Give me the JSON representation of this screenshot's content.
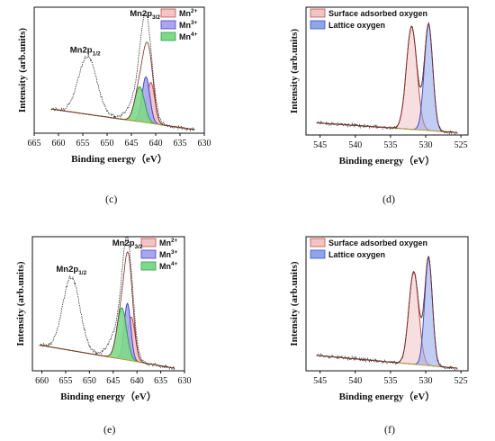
{
  "chart_data": [
    {
      "id": "c",
      "type": "line",
      "panel_label": "(c)",
      "xlabel": "Binding energy（eV）",
      "ylabel": "Intensity (arb.units)",
      "xlim": [
        665,
        630
      ],
      "xticks": [
        665,
        660,
        655,
        650,
        645,
        640,
        635,
        630
      ],
      "y_ticklabels": false,
      "legend_position": "top-right",
      "peak_labels": [
        {
          "base": "Mn2p",
          "sub": "1/2",
          "x": 654.5
        },
        {
          "base": "Mn2p",
          "sub": "3/2",
          "x": 642.2
        }
      ],
      "series": [
        {
          "name": "Mn",
          "sup": "2+",
          "color": "#c0504d",
          "fill": "#f2c4c4",
          "center": 641.0,
          "height": 0.34,
          "width": 0.8
        },
        {
          "name": "Mn",
          "sup": "3+",
          "color": "#4b3fc8",
          "fill": "#a9a6f0",
          "center": 642.0,
          "height": 0.38,
          "width": 0.8
        },
        {
          "name": "Mn",
          "sup": "4+",
          "color": "#2ea14a",
          "fill": "#7fd98a",
          "center": 643.3,
          "height": 0.29,
          "width": 1.0
        }
      ],
      "raw_peaks": [
        {
          "center": 654.0,
          "height": 0.48,
          "width": 1.9
        },
        {
          "center": 642.0,
          "height": 0.78,
          "width": 1.2
        },
        {
          "center": 643.6,
          "height": 0.18,
          "width": 1.9
        }
      ],
      "background": {
        "start": 661.5,
        "end": 632.0,
        "left_level": 0.2,
        "right_level": 0.03
      }
    },
    {
      "id": "d",
      "type": "line",
      "panel_label": "(d)",
      "xlabel": "Binding energy（eV）",
      "ylabel": "Intensity (arb.units)",
      "xlim": [
        547,
        524
      ],
      "xticks": [
        545,
        540,
        535,
        530,
        525
      ],
      "y_ticklabels": false,
      "legend_position": "top-left",
      "series": [
        {
          "name": "Surface adsorbed oxygen",
          "color": "#c0504d",
          "fill": "#f2c4c4",
          "center": 532.0,
          "height": 0.84,
          "width": 0.75
        },
        {
          "name": "Lattice oxygen",
          "color": "#3f4fc8",
          "fill": "#8fa4ea",
          "center": 529.6,
          "height": 0.87,
          "width": 0.6
        }
      ],
      "background": {
        "start": 545.5,
        "end": 525.5,
        "left_level": 0.1,
        "right_level": 0.02
      }
    },
    {
      "id": "e",
      "type": "line",
      "panel_label": "(e)",
      "xlabel": "Binding energy（eV）",
      "ylabel": "Intensity (arb.units)",
      "xlim": [
        662,
        630
      ],
      "xticks": [
        660,
        655,
        650,
        645,
        640,
        635,
        630
      ],
      "y_ticklabels": false,
      "legend_position": "top-right",
      "peak_labels": [
        {
          "base": "Mn2p",
          "sub": "1/2",
          "x": 653.8
        },
        {
          "base": "Mn2p",
          "sub": "3/2",
          "x": 642.0
        }
      ],
      "series": [
        {
          "name": "Mn",
          "sup": "2+",
          "color": "#c0504d",
          "fill": "#f2c4c4",
          "center": 641.2,
          "height": 0.34,
          "width": 0.8
        },
        {
          "name": "Mn",
          "sup": "3+",
          "color": "#4b3fc8",
          "fill": "#a9a6f0",
          "center": 642.0,
          "height": 0.44,
          "width": 0.7
        },
        {
          "name": "Mn",
          "sup": "4+",
          "color": "#2ea14a",
          "fill": "#7fd98a",
          "center": 643.2,
          "height": 0.4,
          "width": 1.0
        }
      ],
      "raw_peaks": [
        {
          "center": 653.8,
          "height": 0.57,
          "width": 1.8
        },
        {
          "center": 642.0,
          "height": 0.82,
          "width": 1.1
        },
        {
          "center": 643.8,
          "height": 0.22,
          "width": 1.8
        }
      ],
      "background": {
        "start": 660.5,
        "end": 632.0,
        "left_level": 0.2,
        "right_level": 0.02
      }
    },
    {
      "id": "f",
      "type": "line",
      "panel_label": "(f)",
      "xlabel": "Binding energy（eV）",
      "ylabel": "Intensity (arb.units)",
      "xlim": [
        547,
        524
      ],
      "xticks": [
        545,
        540,
        535,
        530,
        525
      ],
      "y_ticklabels": false,
      "legend_position": "top-left",
      "series": [
        {
          "name": "Surface adsorbed oxygen",
          "color": "#c0504d",
          "fill": "#f2c4c4",
          "center": 531.7,
          "height": 0.72,
          "width": 0.7
        },
        {
          "name": "Lattice oxygen",
          "color": "#3f4fc8",
          "fill": "#8fa4ea",
          "center": 529.6,
          "height": 0.84,
          "width": 0.55
        }
      ],
      "background": {
        "start": 545.5,
        "end": 525.5,
        "left_level": 0.12,
        "right_level": 0.02
      }
    }
  ]
}
